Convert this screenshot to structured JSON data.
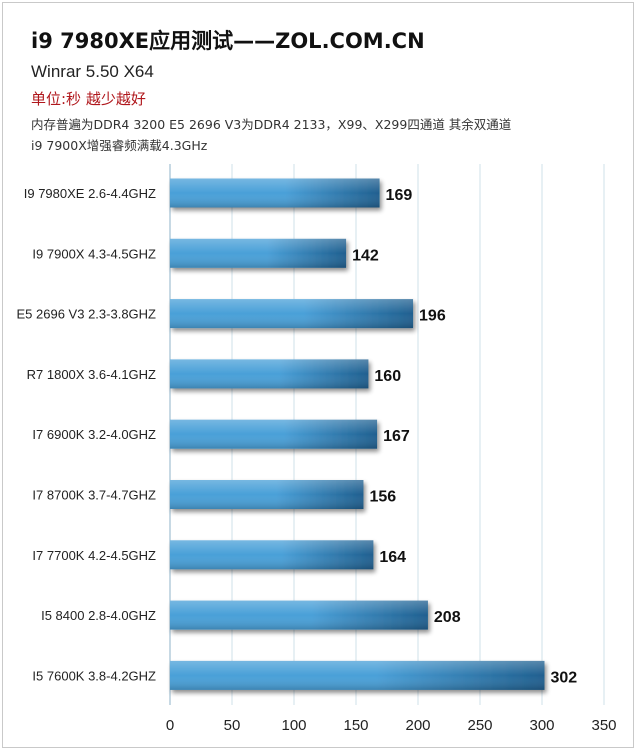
{
  "header": {
    "title": "i9 7980XE应用测试——ZOL.COM.CN",
    "subtitle": "Winrar 5.50 X64",
    "unit_note": "单位:秒 越少越好",
    "note_line1": "内存普遍为DDR4 3200 E5 2696 V3为DDR4 2133，X99、X299四通道 其余双通道",
    "note_line2": "i9 7900X增强睿频满载4.3GHz"
  },
  "colors": {
    "bar_light": "#4aa0d8",
    "bar_dark": "#1f5f8f",
    "grid": "#cfe0ea",
    "label_text": "#222222"
  },
  "chart_data": {
    "type": "bar",
    "orientation": "horizontal",
    "categories": [
      "I9 7980XE 2.6-4.4GHZ",
      "I9 7900X 4.3-4.5GHZ",
      "E5 2696 V3 2.3-3.8GHZ",
      "R7 1800X  3.6-4.1GHZ",
      "I7 6900K 3.2-4.0GHZ",
      "I7 8700K 3.7-4.7GHZ",
      "I7 7700K 4.2-4.5GHZ",
      "I5 8400 2.8-4.0GHZ",
      "I5 7600K 3.8-4.2GHZ"
    ],
    "values": [
      169,
      142,
      196,
      160,
      167,
      156,
      164,
      208,
      302
    ],
    "value_labels": [
      "169",
      "142",
      "196",
      "160",
      "167",
      "156",
      "164",
      "208",
      "302"
    ],
    "x_ticks": [
      "0",
      "50",
      "100",
      "150",
      "200",
      "250",
      "300",
      "350"
    ],
    "xlim": [
      0,
      350
    ],
    "grid": true,
    "legend": "none"
  }
}
